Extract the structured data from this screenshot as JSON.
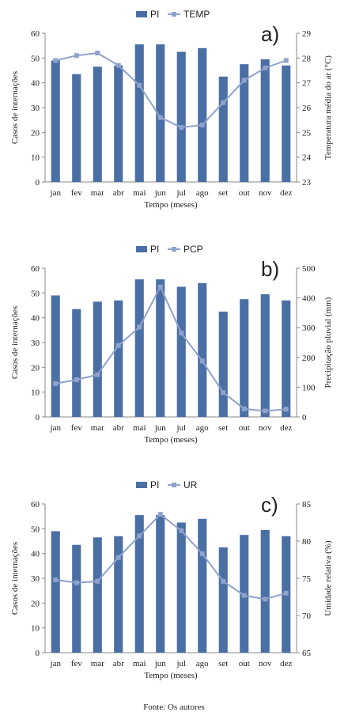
{
  "source_note": "Fonte: Os autores",
  "chart_data": [
    {
      "type": "bar+line",
      "panel_label": "a)",
      "categories": [
        "jan",
        "fev",
        "mar",
        "abr",
        "mai",
        "jun",
        "jul",
        "ago",
        "set",
        "out",
        "nov",
        "dez"
      ],
      "bar_series": {
        "name": "PI",
        "values": [
          49,
          43.5,
          46.5,
          47,
          55.5,
          55.5,
          52.5,
          54,
          42.5,
          47.5,
          49.5,
          47
        ]
      },
      "line_series": {
        "name": "TEMP",
        "values": [
          27.9,
          28.1,
          28.2,
          27.7,
          26.9,
          25.6,
          25.2,
          25.3,
          26.2,
          27.1,
          27.6,
          27.9
        ]
      },
      "xlabel": "Tempo (meses)",
      "ylabel_left": "Casos de internações",
      "ylabel_right": "Temperatura média do ar (°C)",
      "ylim_left": [
        0,
        60
      ],
      "yticks_left": [
        0,
        10,
        20,
        30,
        40,
        50,
        60
      ],
      "ylim_right": [
        23,
        29
      ],
      "yticks_right": [
        23,
        24,
        25,
        26,
        27,
        28,
        29
      ],
      "legend_position": "top",
      "colors": {
        "bar": "#4a6fa5",
        "line": "#8fa2cc"
      }
    },
    {
      "type": "bar+line",
      "panel_label": "b)",
      "categories": [
        "jan",
        "fev",
        "mar",
        "abr",
        "mai",
        "jun",
        "jul",
        "ago",
        "set",
        "out",
        "nov",
        "dez"
      ],
      "bar_series": {
        "name": "PI",
        "values": [
          49,
          43.5,
          46.5,
          47,
          55.5,
          55.5,
          52.5,
          54,
          42.5,
          47.5,
          49.5,
          47
        ]
      },
      "line_series": {
        "name": "PCP",
        "values": [
          112,
          125,
          142,
          240,
          302,
          437,
          282,
          188,
          82,
          27,
          20,
          26
        ]
      },
      "xlabel": "Tempo (meses)",
      "ylabel_left": "Casos de internações",
      "ylabel_right": "Precipitação pluvial (mm)",
      "ylim_left": [
        0,
        60
      ],
      "yticks_left": [
        0,
        10,
        20,
        30,
        40,
        50,
        60
      ],
      "ylim_right": [
        0,
        500
      ],
      "yticks_right": [
        0,
        100,
        200,
        300,
        400,
        500
      ],
      "legend_position": "top",
      "colors": {
        "bar": "#4a6fa5",
        "line": "#8fa2cc"
      }
    },
    {
      "type": "bar+line",
      "panel_label": "c)",
      "categories": [
        "jan",
        "fev",
        "mar",
        "abr",
        "mai",
        "jun",
        "jul",
        "ago",
        "set",
        "out",
        "nov",
        "dez"
      ],
      "bar_series": {
        "name": "PI",
        "values": [
          49,
          43.5,
          46.5,
          47,
          55.5,
          55.5,
          52.5,
          54,
          42.5,
          47.5,
          49.5,
          47
        ]
      },
      "line_series": {
        "name": "UR",
        "values": [
          74.8,
          74.4,
          74.6,
          77.8,
          80.7,
          83.6,
          81.4,
          78.3,
          74.6,
          72.7,
          72.2,
          73
        ]
      },
      "xlabel": "Tempo (meses)",
      "ylabel_left": "Casos de internações",
      "ylabel_right": "Umidade relativa (%)",
      "ylim_left": [
        0,
        60
      ],
      "yticks_left": [
        0,
        10,
        20,
        30,
        40,
        50,
        60
      ],
      "ylim_right": [
        65,
        85
      ],
      "yticks_right": [
        65,
        70,
        75,
        80,
        85
      ],
      "legend_position": "top",
      "colors": {
        "bar": "#4a6fa5",
        "line": "#8fa2cc"
      }
    }
  ]
}
